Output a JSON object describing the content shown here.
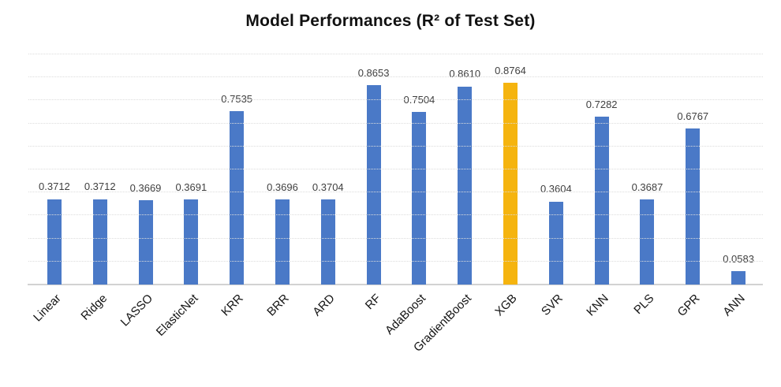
{
  "chart_data": {
    "type": "bar",
    "title": "Model Performances (R² of Test Set)",
    "xlabel": "",
    "ylabel": "",
    "legend": "none",
    "categories": [
      "Linear",
      "Ridge",
      "LASSO",
      "ElasticNet",
      "KRR",
      "BRR",
      "ARD",
      "RF",
      "AdaBoost",
      "GradientBoost",
      "XGB",
      "SVR",
      "KNN",
      "PLS",
      "GPR",
      "ANN"
    ],
    "values": [
      0.3712,
      0.3712,
      0.3669,
      0.3691,
      0.7535,
      0.3696,
      0.3704,
      0.8653,
      0.7504,
      0.861,
      0.8764,
      0.3604,
      0.7282,
      0.3687,
      0.6767,
      0.0583
    ],
    "value_labels": [
      "0.3712",
      "0.3712",
      "0.3669",
      "0.3691",
      "0.7535",
      "0.3696",
      "0.3704",
      "0.8653",
      "0.7504",
      "0.8610",
      "0.8764",
      "0.3604",
      "0.7282",
      "0.3687",
      "0.6767",
      "0.0583"
    ],
    "highlight_category": "XGB",
    "bar_color": "#4a79c7",
    "highlight_color": "#f5b40f",
    "ylim": [
      0,
      1.0
    ],
    "gridline_step": 0.1,
    "grid": "horizontal-dotted",
    "gridline_color": "#dcdcdc",
    "axis_line_color": "#d2d2d2",
    "y_tick_labels_shown": false
  }
}
